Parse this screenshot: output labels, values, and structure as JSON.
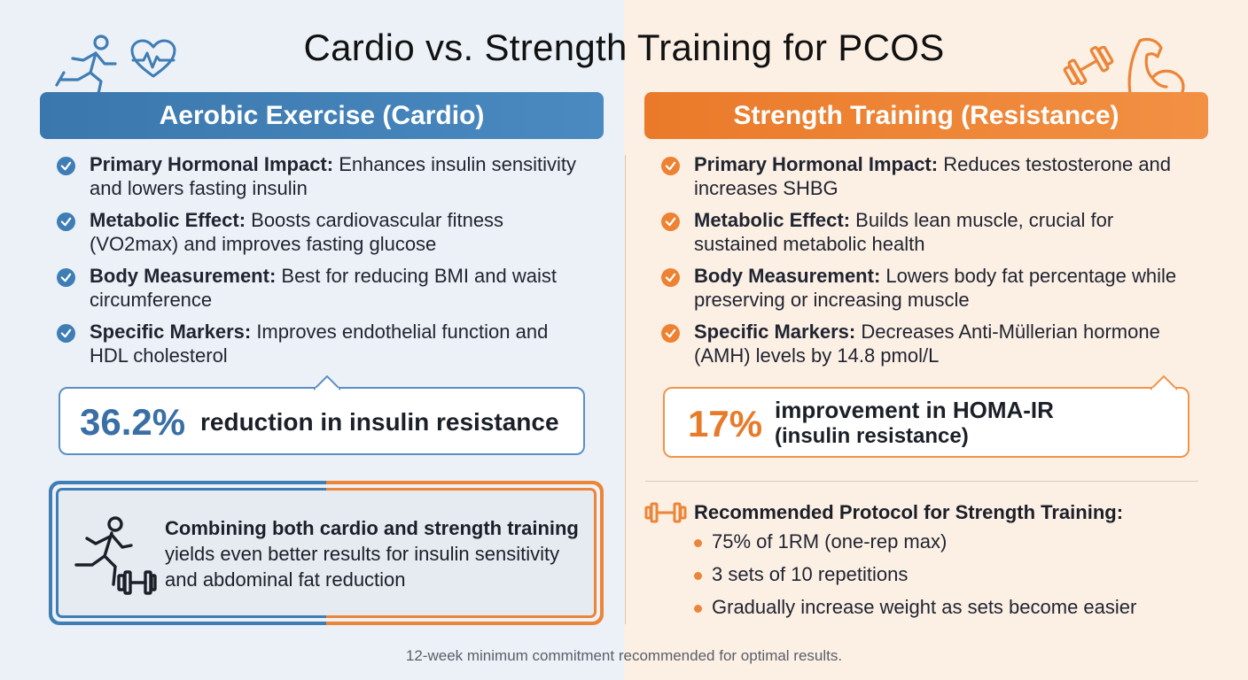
{
  "title": "Cardio vs. Strength Training for PCOS",
  "icons": {
    "top_left": [
      "runner-icon",
      "heart-pulse-icon"
    ],
    "top_right": [
      "dumbbell-icon",
      "flexed-arm-icon"
    ]
  },
  "colors": {
    "cardio": "#3f7db5",
    "strength": "#ec8537"
  },
  "cardio": {
    "header": "Aerobic Exercise (Cardio)",
    "items": [
      {
        "label": "Primary Hormonal Impact:",
        "text": " Enhances insulin sensitivity and lowers fasting insulin"
      },
      {
        "label": "Metabolic Effect:",
        "text": " Boosts cardiovascular fitness (VO2max) and improves fasting glucose"
      },
      {
        "label": "Body Measurement:",
        "text": " Best for reducing BMI and waist circumference"
      },
      {
        "label": "Specific Markers:",
        "text": " Improves endothelial function and HDL cholesterol"
      }
    ],
    "stat": {
      "value": "36.2%",
      "label": "reduction in insulin resistance"
    }
  },
  "strength": {
    "header": "Strength Training (Resistance)",
    "items": [
      {
        "label": "Primary Hormonal Impact:",
        "text": " Reduces testosterone and increases SHBG"
      },
      {
        "label": "Metabolic Effect:",
        "text": " Builds lean muscle, crucial for sustained metabolic health"
      },
      {
        "label": "Body Measurement:",
        "text": " Lowers body fat percentage while preserving or increasing muscle"
      },
      {
        "label": "Specific Markers:",
        "text": " Decreases Anti-Müllerian hormone (AMH) levels by 14.8 pmol/L"
      }
    ],
    "stat": {
      "value": "17%",
      "label": "improvement in HOMA-IR",
      "label2": "(insulin resistance)"
    }
  },
  "combo": {
    "bold": "Combining both cardio and strength training",
    "text": " yields even better results for insulin sensitivity and abdominal fat reduction"
  },
  "protocol": {
    "title": "Recommended Protocol for Strength Training:",
    "items": [
      "75% of 1RM (one-rep max)",
      "3 sets of 10 repetitions",
      "Gradually increase weight as sets become easier"
    ]
  },
  "footer": "12-week minimum commitment recommended for optimal results."
}
